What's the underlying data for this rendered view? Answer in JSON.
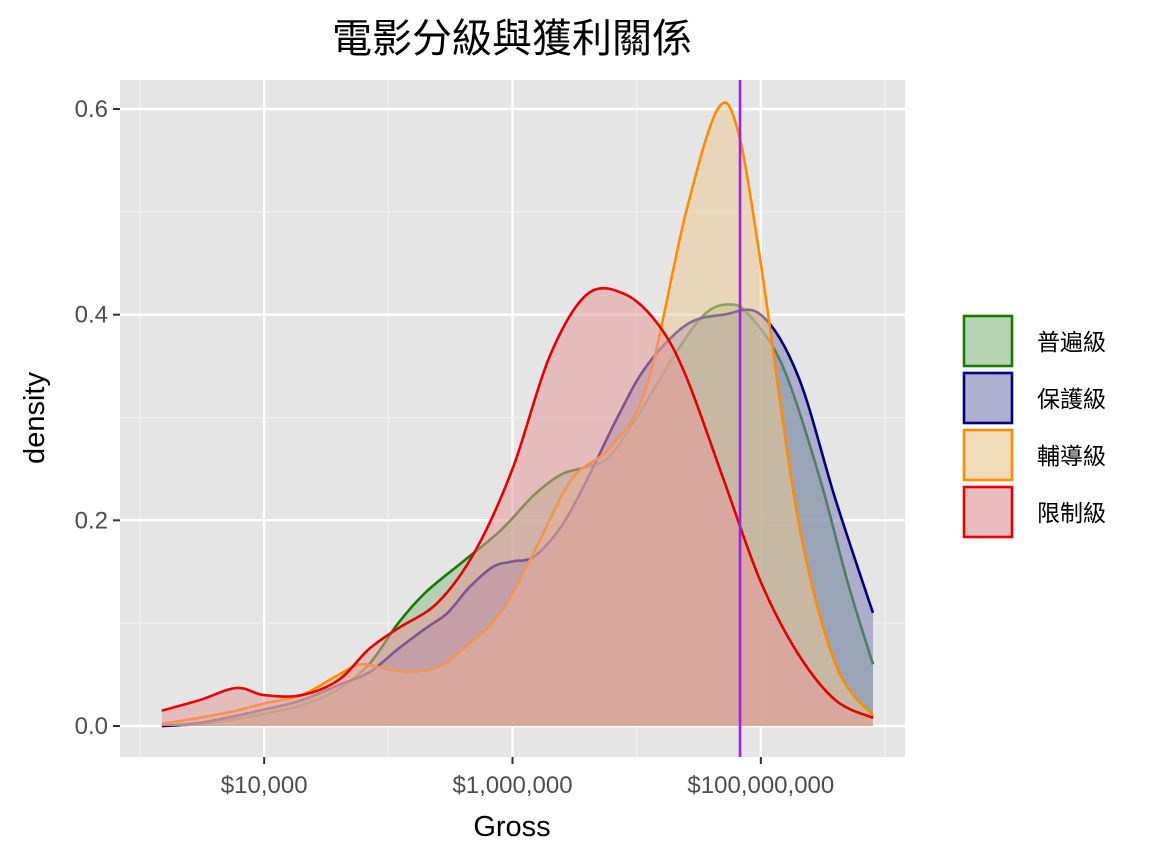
{
  "chart_data": {
    "type": "area",
    "title": "電影分級與獲利關係",
    "xlabel": "Gross",
    "ylabel": "density",
    "x_scale": "log10",
    "xlim": [
      1000,
      1000000000
    ],
    "ylim": [
      0,
      0.6
    ],
    "x_ticks": [
      10000,
      1000000,
      100000000
    ],
    "x_tick_labels": [
      "$10,000",
      "$1,000,000",
      "$100,000,000"
    ],
    "y_ticks": [
      0,
      0.2,
      0.4,
      0.6
    ],
    "y_tick_labels": [
      "0.0",
      "0.2",
      "0.4",
      "0.6"
    ],
    "grid": true,
    "legend_position": "right",
    "vline": {
      "x": 68000000,
      "color": "#a020f0"
    },
    "series": [
      {
        "name": "普遍級",
        "color": "#1a7a00",
        "fill": "#8fc08a",
        "points": [
          [
            1500,
            0.0
          ],
          [
            3000,
            0.002
          ],
          [
            6000,
            0.007
          ],
          [
            10000,
            0.012
          ],
          [
            20000,
            0.02
          ],
          [
            40000,
            0.036
          ],
          [
            70000,
            0.06
          ],
          [
            120000,
            0.1
          ],
          [
            200000,
            0.13
          ],
          [
            400000,
            0.16
          ],
          [
            800000,
            0.19
          ],
          [
            1500000,
            0.225
          ],
          [
            2500000,
            0.245
          ],
          [
            4000000,
            0.252
          ],
          [
            6000000,
            0.262
          ],
          [
            10000000,
            0.3
          ],
          [
            20000000,
            0.36
          ],
          [
            35000000,
            0.4
          ],
          [
            55000000,
            0.41
          ],
          [
            80000000,
            0.4
          ],
          [
            150000000,
            0.35
          ],
          [
            300000000,
            0.24
          ],
          [
            500000000,
            0.14
          ],
          [
            800000000,
            0.06
          ]
        ]
      },
      {
        "name": "保護級",
        "color": "#000080",
        "fill": "#8181b8",
        "points": [
          [
            1500,
            0.0
          ],
          [
            3000,
            0.003
          ],
          [
            6000,
            0.01
          ],
          [
            10000,
            0.016
          ],
          [
            20000,
            0.025
          ],
          [
            40000,
            0.04
          ],
          [
            70000,
            0.052
          ],
          [
            120000,
            0.075
          ],
          [
            200000,
            0.095
          ],
          [
            300000,
            0.11
          ],
          [
            450000,
            0.135
          ],
          [
            700000,
            0.155
          ],
          [
            1000000,
            0.16
          ],
          [
            1500000,
            0.165
          ],
          [
            2500000,
            0.195
          ],
          [
            4000000,
            0.24
          ],
          [
            7000000,
            0.3
          ],
          [
            12000000,
            0.35
          ],
          [
            25000000,
            0.39
          ],
          [
            50000000,
            0.4
          ],
          [
            100000000,
            0.4
          ],
          [
            200000000,
            0.34
          ],
          [
            400000000,
            0.22
          ],
          [
            800000000,
            0.11
          ]
        ]
      },
      {
        "name": "輔導級",
        "color": "#ff8c00",
        "fill": "#ecc995",
        "points": [
          [
            1500,
            0.002
          ],
          [
            3000,
            0.008
          ],
          [
            6000,
            0.015
          ],
          [
            10000,
            0.022
          ],
          [
            20000,
            0.03
          ],
          [
            40000,
            0.05
          ],
          [
            60000,
            0.06
          ],
          [
            100000,
            0.055
          ],
          [
            150000,
            0.053
          ],
          [
            250000,
            0.057
          ],
          [
            400000,
            0.075
          ],
          [
            800000,
            0.11
          ],
          [
            1500000,
            0.17
          ],
          [
            3000000,
            0.24
          ],
          [
            6000000,
            0.27
          ],
          [
            12000000,
            0.33
          ],
          [
            25000000,
            0.5
          ],
          [
            45000000,
            0.6
          ],
          [
            65000000,
            0.58
          ],
          [
            100000000,
            0.45
          ],
          [
            200000000,
            0.2
          ],
          [
            400000000,
            0.06
          ],
          [
            800000000,
            0.01
          ]
        ]
      },
      {
        "name": "限制級",
        "color": "#e60000",
        "fill": "#e59a9a",
        "points": [
          [
            1500,
            0.015
          ],
          [
            3000,
            0.025
          ],
          [
            6000,
            0.037
          ],
          [
            10000,
            0.03
          ],
          [
            20000,
            0.03
          ],
          [
            40000,
            0.045
          ],
          [
            70000,
            0.075
          ],
          [
            120000,
            0.095
          ],
          [
            250000,
            0.12
          ],
          [
            500000,
            0.17
          ],
          [
            1000000,
            0.25
          ],
          [
            2000000,
            0.36
          ],
          [
            4000000,
            0.42
          ],
          [
            8000000,
            0.42
          ],
          [
            15000000,
            0.39
          ],
          [
            25000000,
            0.34
          ],
          [
            50000000,
            0.24
          ],
          [
            100000000,
            0.14
          ],
          [
            200000000,
            0.07
          ],
          [
            400000000,
            0.025
          ],
          [
            800000000,
            0.008
          ]
        ]
      }
    ]
  }
}
